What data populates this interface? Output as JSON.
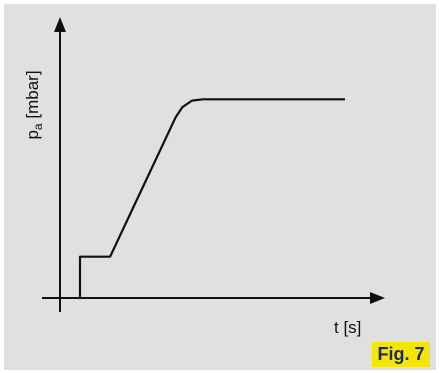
{
  "colors": {
    "panel_background": "#e0e0e0",
    "line": "#111111",
    "badge_background": "#f5e600",
    "badge_text": "#1a2a5c"
  },
  "figure_label": "Fig. 7",
  "chart_data": {
    "type": "line",
    "title": "",
    "xlabel": "t [s]",
    "ylabel": {
      "symbol": "p",
      "subscript": "a",
      "unit": "[mbar]"
    },
    "xlim": [
      0,
      100
    ],
    "ylim": [
      0,
      100
    ],
    "grid": false,
    "legend": "none",
    "axis_ticks": "none",
    "series": [
      {
        "points": [
          {
            "x": 0,
            "y": 0
          },
          {
            "x": 0,
            "y": 16
          },
          {
            "x": 11,
            "y": 16
          },
          {
            "x": 35,
            "y": 70
          },
          {
            "x": 37.5,
            "y": 74
          },
          {
            "x": 41,
            "y": 76.5
          },
          {
            "x": 45,
            "y": 77
          },
          {
            "x": 97,
            "y": 77
          }
        ]
      }
    ]
  }
}
